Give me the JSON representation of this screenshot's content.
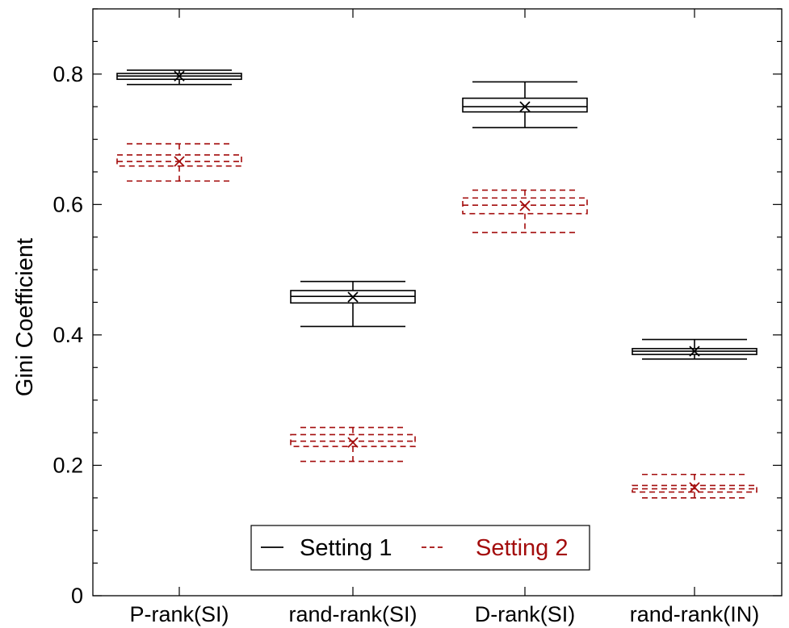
{
  "chart_data": {
    "type": "box",
    "title": "",
    "xlabel": "",
    "ylabel": "Gini Coefficient",
    "ylim": [
      0,
      0.9
    ],
    "y_ticks": [
      0,
      0.2,
      0.4,
      0.6,
      0.8
    ],
    "y_tick_labels": [
      "0",
      "0.2",
      "0.4",
      "0.6",
      "0.8"
    ],
    "categories": [
      "P-rank(SI)",
      "rand-rank(SI)",
      "D-rank(SI)",
      "rand-rank(IN)"
    ],
    "grid": false,
    "legend": {
      "placement": "bottom-center",
      "entries": [
        "Setting 1",
        "Setting 2"
      ]
    },
    "series": [
      {
        "name": "Setting 1",
        "color": "#000000",
        "line_style": "solid",
        "boxes": [
          {
            "whisker_low": 0.784,
            "q1": 0.792,
            "median": 0.797,
            "q3": 0.801,
            "whisker_high": 0.806,
            "mean": 0.797
          },
          {
            "whisker_low": 0.413,
            "q1": 0.449,
            "median": 0.459,
            "q3": 0.468,
            "whisker_high": 0.482,
            "mean": 0.458
          },
          {
            "whisker_low": 0.718,
            "q1": 0.742,
            "median": 0.75,
            "q3": 0.763,
            "whisker_high": 0.788,
            "mean": 0.75
          },
          {
            "whisker_low": 0.363,
            "q1": 0.37,
            "median": 0.375,
            "q3": 0.379,
            "whisker_high": 0.393,
            "mean": 0.375
          }
        ]
      },
      {
        "name": "Setting 2",
        "color": "#a30c0c",
        "line_style": "dashed",
        "boxes": [
          {
            "whisker_low": 0.636,
            "q1": 0.659,
            "median": 0.666,
            "q3": 0.676,
            "whisker_high": 0.693,
            "mean": 0.666
          },
          {
            "whisker_low": 0.206,
            "q1": 0.229,
            "median": 0.237,
            "q3": 0.247,
            "whisker_high": 0.258,
            "mean": 0.235
          },
          {
            "whisker_low": 0.557,
            "q1": 0.586,
            "median": 0.599,
            "q3": 0.61,
            "whisker_high": 0.622,
            "mean": 0.598
          },
          {
            "whisker_low": 0.15,
            "q1": 0.159,
            "median": 0.164,
            "q3": 0.169,
            "whisker_high": 0.186,
            "mean": 0.166
          }
        ]
      }
    ]
  }
}
